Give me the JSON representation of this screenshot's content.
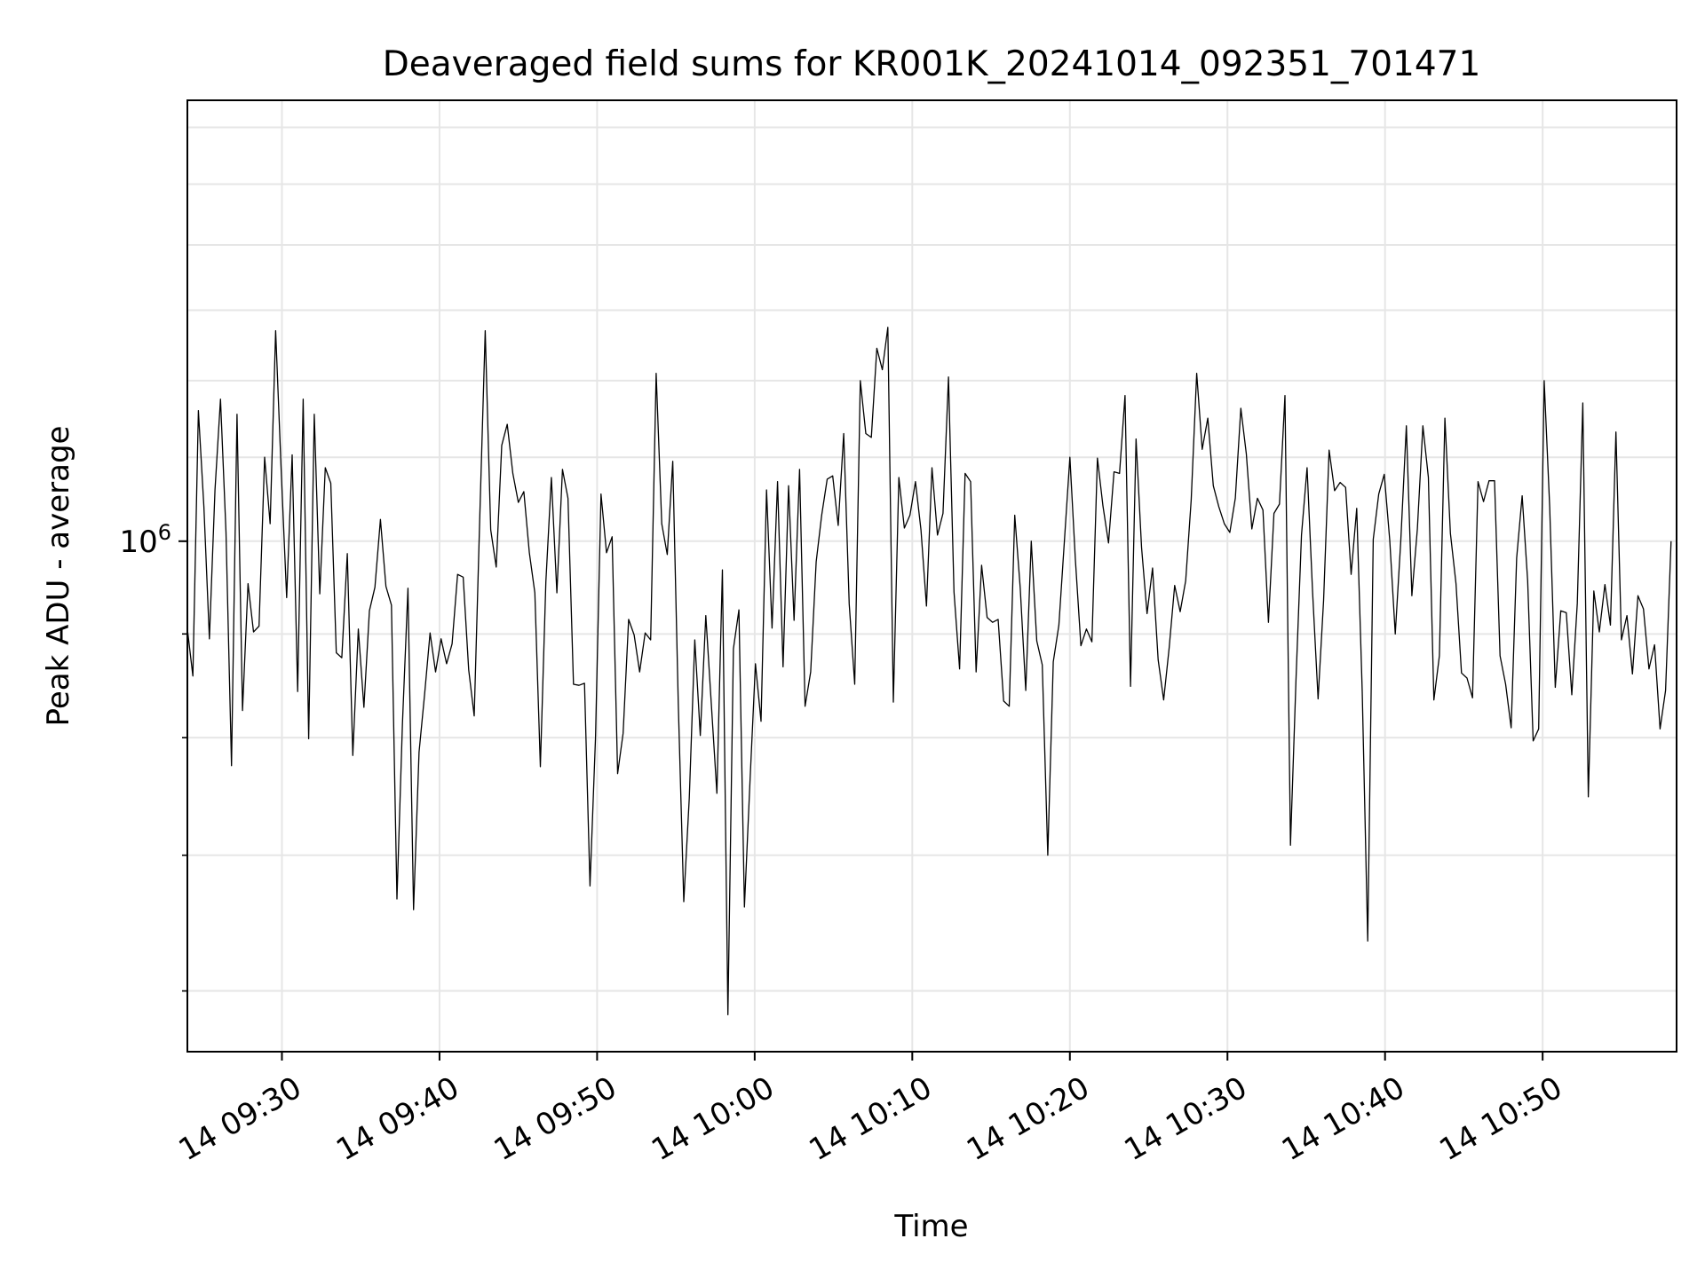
{
  "chart_data": {
    "type": "line",
    "title": "Deaveraged field sums for KR001K_20241014_092351_701471",
    "xlabel": "Time",
    "ylabel": "Peak ADU - average",
    "y_scale": "log",
    "grid": true,
    "legend": "none",
    "line_color": "#000000",
    "grid_color": "#e6e6e6",
    "x_range": [
      "2024-10-14 09:24:00",
      "2024-10-14 10:58:30"
    ],
    "ylim": [
      560000,
      1650000
    ],
    "x_ticks": [
      {
        "time": "2024-10-14 09:30",
        "label": "14 09:30"
      },
      {
        "time": "2024-10-14 09:40",
        "label": "14 09:40"
      },
      {
        "time": "2024-10-14 09:50",
        "label": "14 09:50"
      },
      {
        "time": "2024-10-14 10:00",
        "label": "14 10:00"
      },
      {
        "time": "2024-10-14 10:10",
        "label": "14 10:10"
      },
      {
        "time": "2024-10-14 10:20",
        "label": "14 10:20"
      },
      {
        "time": "2024-10-14 10:30",
        "label": "14 10:30"
      },
      {
        "time": "2024-10-14 10:40",
        "label": "14 10:40"
      },
      {
        "time": "2024-10-14 10:50",
        "label": "14 10:50"
      }
    ],
    "y_major_tick": {
      "value": 1000000,
      "label": "10^6"
    },
    "y_minor_ticks": [
      600000,
      700000,
      800000,
      900000,
      1000000,
      2000000
    ],
    "y_minor_grid": [
      600000,
      700000,
      800000,
      900000,
      1100000,
      1200000,
      1300000,
      1400000,
      1500000,
      1600000
    ],
    "series": [
      {
        "x_start": "2024-10-14 09:24:00",
        "x_step_seconds": 21,
        "values": [
          905000,
          858000,
          1160000,
          1040000,
          895000,
          1060000,
          1175000,
          1010000,
          775000,
          1155000,
          825000,
          953000,
          902000,
          908000,
          1100000,
          1020000,
          1270000,
          1085000,
          938000,
          1103000,
          843000,
          1175000,
          799000,
          1155000,
          942000,
          1087000,
          1068000,
          881000,
          876000,
          986000,
          784000,
          905000,
          828000,
          924000,
          949000,
          1025000,
          950000,
          930000,
          666000,
          813000,
          948000,
          658000,
          787000,
          840000,
          901000,
          862000,
          895000,
          870000,
          890000,
          963000,
          960000,
          864000,
          820000,
          1025000,
          1270000,
          1013000,
          971000,
          1115000,
          1142000,
          1080000,
          1045000,
          1058000,
          987000,
          943000,
          774000,
          955000,
          1075000,
          943000,
          1085000,
          1050000,
          850000,
          849000,
          851000,
          676000,
          800000,
          1055000,
          987000,
          1005000,
          768000,
          804000,
          915000,
          899000,
          862000,
          901000,
          894000,
          1210000,
          1020000,
          985000,
          1095000,
          832000,
          664000,
          747000,
          894000,
          802000,
          919000,
          830000,
          751000,
          968000,
          584000,
          885000,
          925000,
          660000,
          760000,
          870000,
          815000,
          1060000,
          906000,
          1070000,
          867000,
          1065000,
          914000,
          1085000,
          829000,
          862000,
          977000,
          1030000,
          1073000,
          1077000,
          1018000,
          1130000,
          931000,
          850000,
          1200000,
          1130000,
          1125000,
          1245000,
          1215000,
          1275000,
          833000,
          1075000,
          1015000,
          1030000,
          1070000,
          1013000,
          929000,
          1087000,
          1007000,
          1032000,
          1205000,
          944000,
          865000,
          1080000,
          1070000,
          862000,
          973000,
          917000,
          912000,
          915000,
          834000,
          829000,
          1030000,
          948000,
          844000,
          1000000,
          893000,
          869000,
          700000,
          872000,
          909000,
          1000000,
          1100000,
          979000,
          888000,
          905000,
          892000,
          1099000,
          1041000,
          998000,
          1082000,
          1080000,
          1180000,
          848000,
          1123000,
          993000,
          921000,
          970000,
          874000,
          835000,
          886000,
          951000,
          923000,
          956000,
          1048000,
          1210000,
          1110000,
          1150000,
          1065000,
          1040000,
          1020000,
          1010000,
          1050000,
          1163000,
          1104000,
          1014000,
          1050000,
          1036000,
          912000,
          1032000,
          1043000,
          1180000,
          708000,
          854000,
          1007000,
          1087000,
          944000,
          836000,
          935000,
          1109000,
          1059000,
          1069000,
          1063000,
          963000,
          1038000,
          843000,
          635000,
          1002000,
          1055000,
          1079000,
          1001000,
          900000,
          1000000,
          1140000,
          940000,
          1014000,
          1140000,
          1075000,
          835000,
          878000,
          1150000,
          1009000,
          953000,
          861000,
          856000,
          837000,
          1070000,
          1046000,
          1071000,
          1071000,
          878000,
          850000,
          809000,
          981000,
          1053000,
          956000,
          797000,
          808000,
          1200000,
          1040000,
          847000,
          924000,
          922000,
          840000,
          932000,
          1170000,
          748000,
          945000,
          902000,
          952000,
          909000,
          1132000,
          894000,
          919000,
          860000,
          940000,
          926000,
          865000,
          889000,
          808000,
          844000,
          1000000
        ]
      }
    ]
  }
}
